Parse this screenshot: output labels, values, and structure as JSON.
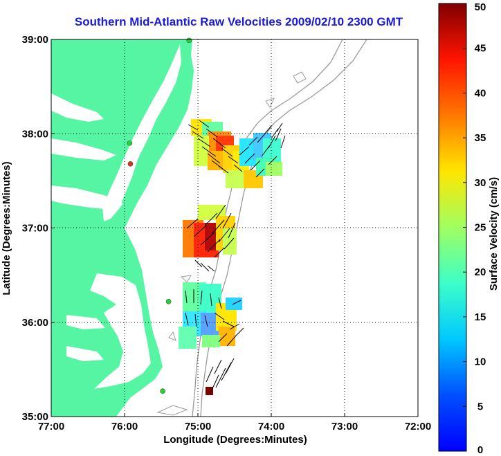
{
  "map": {
    "title": "Southern Mid-Atlantic Raw Velocities 2009/02/10 2300 GMT",
    "xlabel": "Longitude (Degrees:Minutes)",
    "ylabel": "Latitude (Degrees:Minutes)",
    "x_ticks": [
      "77:00",
      "76:00",
      "75:00",
      "74:00",
      "73:00",
      "72:00"
    ],
    "y_ticks": [
      "39:00",
      "38:00",
      "37:00",
      "36:00",
      "35:00"
    ],
    "lon_range": [
      -77,
      -72
    ],
    "lat_range": [
      35,
      39
    ],
    "grid": "dotted",
    "land_color": "#55f5a3",
    "stations": [
      {
        "lon": -75.12,
        "lat": 38.99,
        "color": "#2ecc40"
      },
      {
        "lon": -75.93,
        "lat": 37.9,
        "color": "#2ecc40"
      },
      {
        "lon": -75.92,
        "lat": 37.68,
        "color": "#e03020"
      },
      {
        "lon": -75.4,
        "lat": 36.22,
        "color": "#2ecc40"
      },
      {
        "lon": -75.48,
        "lat": 35.27,
        "color": "#2ecc40"
      }
    ]
  },
  "colorbar": {
    "label": "Surface Velocity (cm/s)",
    "min": 0,
    "max": 50,
    "ticks": [
      "0",
      "5",
      "10",
      "15",
      "20",
      "25",
      "30",
      "35",
      "40",
      "45",
      "50"
    ],
    "colormap": "jet"
  }
}
